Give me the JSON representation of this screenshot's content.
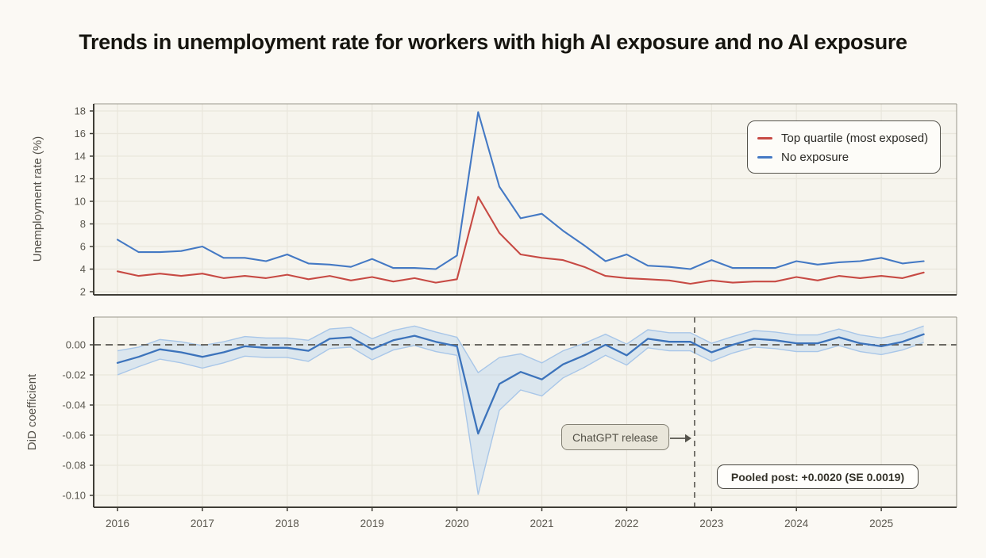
{
  "title": "Trends in unemployment rate for workers with high AI exposure and no AI exposure",
  "colors": {
    "page_bg": "#fbf9f4",
    "plot_bg": "#f6f4ed",
    "grid": "#e9e6dc",
    "spine_dark": "#403e37",
    "spine_light": "#9a978c",
    "dashed": "#6b6963",
    "red_line": "#c74a44",
    "blue_line": "#4479c4",
    "did_line": "#3c73bb",
    "band_fill": "rgba(170,202,240,0.35)",
    "band_edge": "#a8c6e8"
  },
  "chart_data": [
    {
      "type": "line",
      "panel": "top",
      "title": "",
      "xlabel": "",
      "ylabel": "Unemployment rate (%)",
      "ylim": [
        1.7,
        18.6
      ],
      "yticks": [
        2,
        4,
        6,
        8,
        10,
        12,
        14,
        16,
        18
      ],
      "x_years": [
        2016,
        2017,
        2018,
        2019,
        2020,
        2021,
        2022,
        2023,
        2024,
        2025
      ],
      "x_start": 2016.0,
      "x_step": 0.25,
      "grid": true,
      "legend_position": "top-right",
      "series": [
        {
          "name": "Top quartile (most exposed)",
          "color": "#c74a44",
          "values": [
            3.8,
            3.4,
            3.6,
            3.4,
            3.6,
            3.2,
            3.4,
            3.2,
            3.5,
            3.1,
            3.4,
            3.0,
            3.3,
            2.9,
            3.2,
            2.8,
            3.1,
            10.4,
            7.2,
            5.3,
            5.0,
            4.8,
            4.2,
            3.4,
            3.2,
            3.1,
            3.0,
            2.7,
            3.0,
            2.8,
            2.9,
            2.9,
            3.3,
            3.0,
            3.4,
            3.2,
            3.4,
            3.2,
            3.7
          ]
        },
        {
          "name": "No exposure",
          "color": "#4479c4",
          "values": [
            6.6,
            5.5,
            5.5,
            5.6,
            6.0,
            5.0,
            5.0,
            4.7,
            5.3,
            4.5,
            4.4,
            4.2,
            4.9,
            4.1,
            4.1,
            4.0,
            5.2,
            17.9,
            11.3,
            8.5,
            8.9,
            7.4,
            6.1,
            4.7,
            5.3,
            4.3,
            4.2,
            4.0,
            4.8,
            4.1,
            4.1,
            4.1,
            4.7,
            4.4,
            4.6,
            4.7,
            5.0,
            4.5,
            4.7
          ]
        }
      ]
    },
    {
      "type": "line",
      "panel": "bottom",
      "title": "",
      "xlabel": "",
      "ylabel": "DiD coefficient",
      "ylim": [
        -0.108,
        0.018
      ],
      "yticks": [
        0.0,
        -0.02,
        -0.04,
        -0.06,
        -0.08,
        -0.1
      ],
      "x_years": [
        2016,
        2017,
        2018,
        2019,
        2020,
        2021,
        2022,
        2023,
        2024,
        2025
      ],
      "x_start": 2016.0,
      "x_step": 0.25,
      "grid": true,
      "zero_line": 0.0,
      "vline_x": 2022.8,
      "series": [
        {
          "name": "DiD coefficient",
          "color": "#3c73bb",
          "values": [
            -0.012,
            -0.008,
            -0.003,
            -0.005,
            -0.008,
            -0.005,
            -0.001,
            -0.002,
            -0.002,
            -0.004,
            0.004,
            0.005,
            -0.003,
            0.003,
            0.006,
            0.002,
            -0.001,
            -0.059,
            -0.026,
            -0.018,
            -0.023,
            -0.013,
            -0.007,
            0.0,
            -0.007,
            0.004,
            0.002,
            0.002,
            -0.005,
            0.0,
            0.004,
            0.003,
            0.001,
            0.001,
            0.005,
            0.001,
            -0.001,
            0.002,
            0.007
          ],
          "ci_lower": [
            -0.02,
            -0.0145,
            -0.0095,
            -0.012,
            -0.0155,
            -0.012,
            -0.0075,
            -0.0085,
            -0.0085,
            -0.011,
            -0.0025,
            -0.0015,
            -0.01,
            -0.0035,
            -0.0005,
            -0.0045,
            -0.007,
            -0.0995,
            -0.0435,
            -0.03,
            -0.034,
            -0.022,
            -0.015,
            -0.007,
            -0.0135,
            -0.002,
            -0.004,
            -0.004,
            -0.011,
            -0.0055,
            -0.0015,
            -0.0025,
            -0.0045,
            -0.0045,
            -0.0005,
            -0.0045,
            -0.0065,
            -0.0035,
            0.0015
          ],
          "ci_upper": [
            -0.004,
            -0.0015,
            0.0035,
            0.002,
            -0.0005,
            0.002,
            0.0055,
            0.0045,
            0.0045,
            0.003,
            0.0105,
            0.0115,
            0.004,
            0.0095,
            0.0125,
            0.0085,
            0.005,
            -0.0185,
            -0.0085,
            -0.006,
            -0.012,
            -0.004,
            0.001,
            0.007,
            0.0005,
            0.01,
            0.008,
            0.008,
            0.001,
            0.0055,
            0.0095,
            0.0085,
            0.0065,
            0.0065,
            0.0105,
            0.0065,
            0.0045,
            0.0075,
            0.0125
          ]
        }
      ],
      "annotations": {
        "chatgpt_release": {
          "label": "ChatGPT release"
        },
        "pooled_post": {
          "label": "Pooled post: +0.0020 (SE 0.0019)"
        }
      }
    }
  ]
}
